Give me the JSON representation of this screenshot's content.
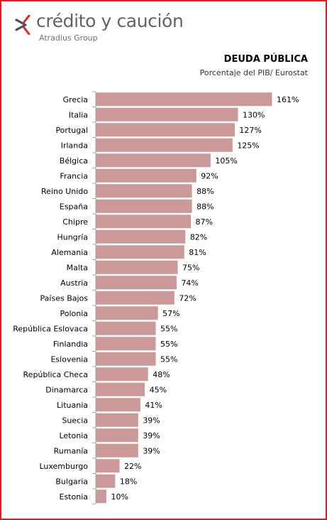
{
  "brand": {
    "name": "crédito y caución",
    "group": "Atradius Group",
    "arrow_dark": "#4d5257",
    "arrow_red": "#e1251b"
  },
  "chart_data": {
    "type": "bar",
    "orientation": "horizontal",
    "title": "DEUDA PÚBLICA",
    "subtitle": "Porcentaje del PIB/ Eurostat",
    "categories": [
      "Grecia",
      "Italia",
      "Portugal",
      "Irlanda",
      "Bélgica",
      "Francia",
      "Reino Unido",
      "España",
      "Chipre",
      "Hungría",
      "Alemania",
      "Malta",
      "Austria",
      "Países Bajos",
      "Polonia",
      "República Eslovaca",
      "Finlandia",
      "Eslovenia",
      "República Checa",
      "Dinamarca",
      "Lituania",
      "Suecia",
      "Letonia",
      "Rumanía",
      "Luxemburgo",
      "Bulgaria",
      "Estonia"
    ],
    "values": [
      161,
      130,
      127,
      125,
      105,
      92,
      88,
      88,
      87,
      82,
      81,
      75,
      74,
      72,
      57,
      55,
      55,
      55,
      48,
      45,
      41,
      39,
      39,
      39,
      22,
      18,
      10
    ],
    "value_labels": [
      "161%",
      "130%",
      "127%",
      "125%",
      "105%",
      "92%",
      "88%",
      "88%",
      "87%",
      "82%",
      "81%",
      "75%",
      "74%",
      "72%",
      "57%",
      "55%",
      "55%",
      "55%",
      "48%",
      "45%",
      "41%",
      "39%",
      "39%",
      "39%",
      "22%",
      "18%",
      "10%"
    ],
    "unit": "%",
    "xlim": [
      0,
      161
    ],
    "bar_color": "#cc9999",
    "bar_border": "#ffffff",
    "axis_color": "#a6a6a6",
    "grid": false,
    "legend": "none"
  }
}
